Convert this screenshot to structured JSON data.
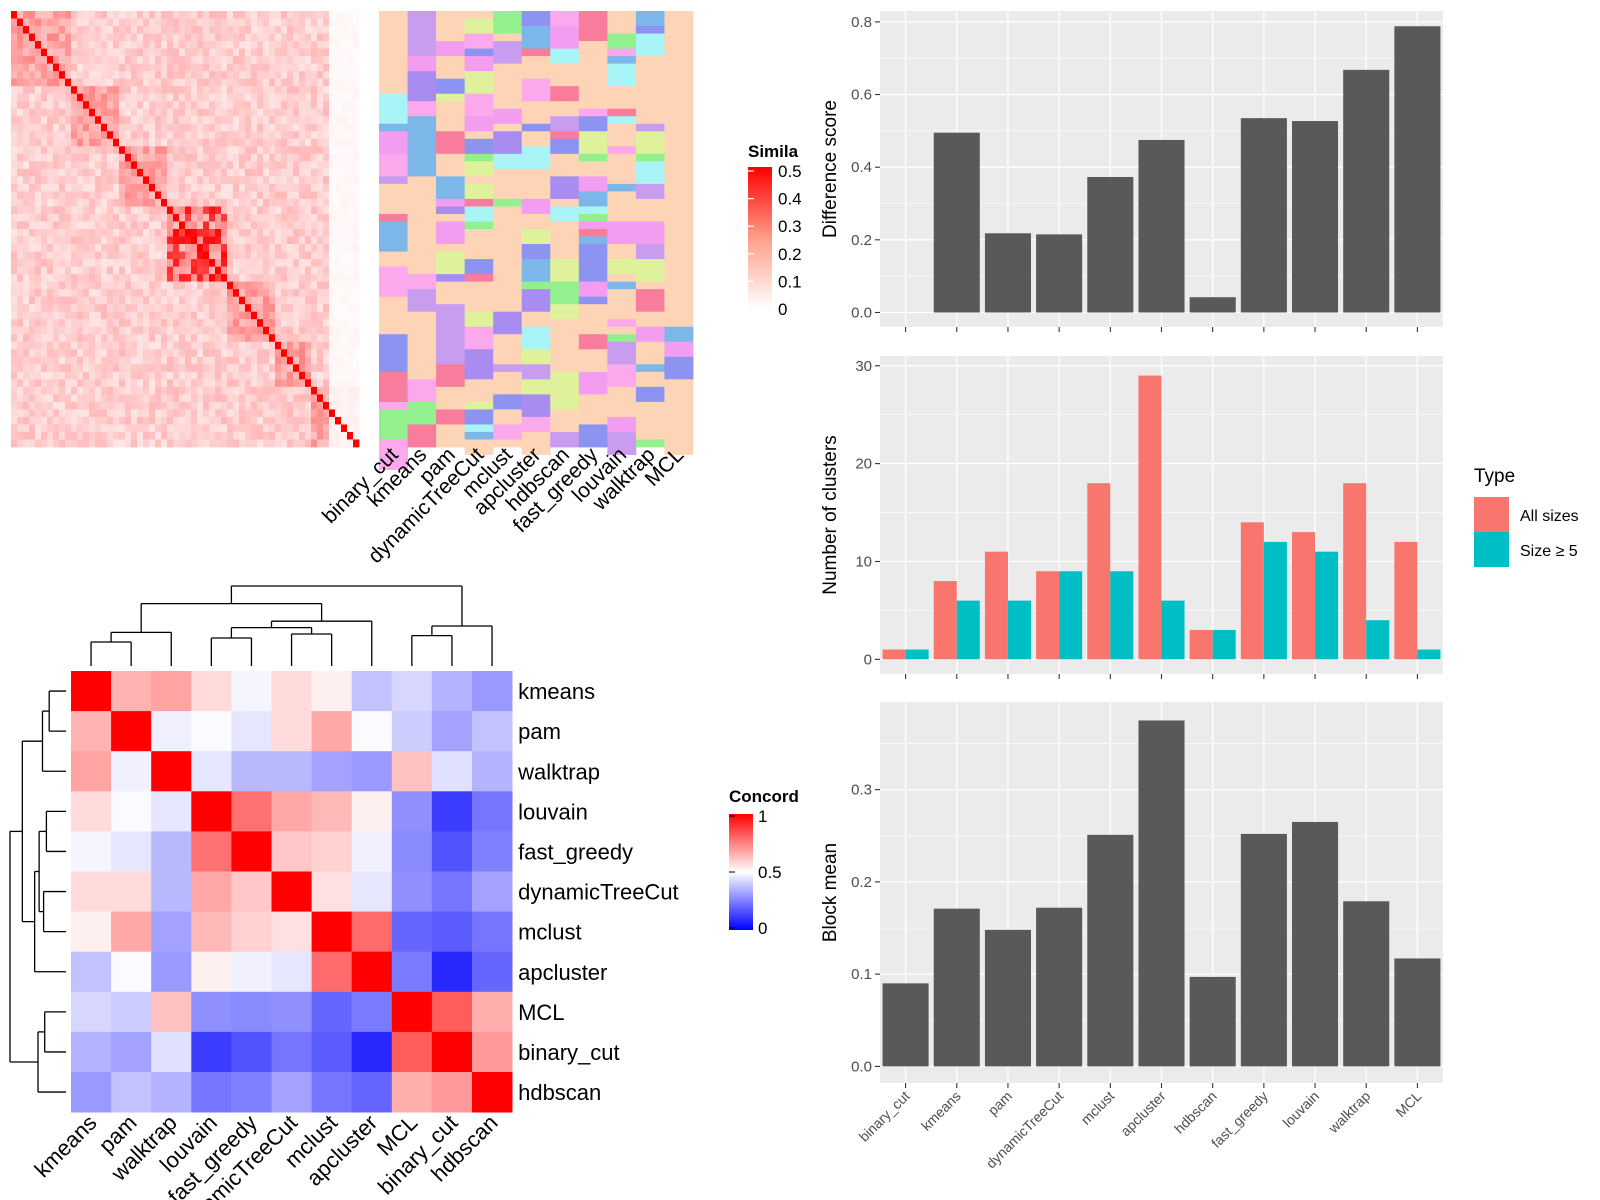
{
  "chart_data": [
    {
      "type": "heatmap",
      "id": "similarity",
      "legend_title": "Simila",
      "legend_ticks": [
        "0.5",
        "0.4",
        "0.3",
        "0.2",
        "0.1",
        "0"
      ],
      "range": [
        0,
        0.5
      ],
      "n_cells": 58,
      "column_annotations": [
        "binary_cut",
        "kmeans",
        "pam",
        "dynamicTreeCut",
        "mclust",
        "apcluster",
        "hdbscan",
        "fast_greedy",
        "louvain",
        "walktrap",
        "MCL"
      ]
    },
    {
      "type": "heatmap",
      "id": "concordance",
      "legend_title": "Concord",
      "legend_ticks": [
        "1",
        "0.5",
        "0"
      ],
      "range": [
        0,
        1
      ],
      "labels": [
        "kmeans",
        "pam",
        "walktrap",
        "louvain",
        "fast_greedy",
        "dynamicTreeCut",
        "mclust",
        "apcluster",
        "MCL",
        "binary_cut",
        "hdbscan"
      ],
      "values": [
        [
          1.0,
          0.65,
          0.68,
          0.57,
          0.48,
          0.57,
          0.53,
          0.38,
          0.42,
          0.35,
          0.3
        ],
        [
          0.65,
          1.0,
          0.47,
          0.49,
          0.45,
          0.57,
          0.67,
          0.49,
          0.4,
          0.32,
          0.38
        ],
        [
          0.68,
          0.47,
          1.0,
          0.45,
          0.36,
          0.36,
          0.32,
          0.3,
          0.62,
          0.44,
          0.35
        ],
        [
          0.57,
          0.49,
          0.45,
          1.0,
          0.78,
          0.67,
          0.64,
          0.53,
          0.28,
          0.12,
          0.23
        ],
        [
          0.48,
          0.45,
          0.36,
          0.78,
          1.0,
          0.61,
          0.59,
          0.47,
          0.27,
          0.16,
          0.25
        ],
        [
          0.57,
          0.57,
          0.36,
          0.67,
          0.61,
          1.0,
          0.56,
          0.45,
          0.28,
          0.23,
          0.32
        ],
        [
          0.53,
          0.67,
          0.32,
          0.64,
          0.59,
          0.56,
          1.0,
          0.79,
          0.2,
          0.18,
          0.23
        ],
        [
          0.38,
          0.49,
          0.3,
          0.53,
          0.47,
          0.45,
          0.79,
          1.0,
          0.24,
          0.08,
          0.2
        ],
        [
          0.42,
          0.4,
          0.62,
          0.28,
          0.27,
          0.28,
          0.2,
          0.24,
          1.0,
          0.82,
          0.66
        ],
        [
          0.35,
          0.32,
          0.44,
          0.12,
          0.16,
          0.23,
          0.18,
          0.08,
          0.82,
          1.0,
          0.7
        ],
        [
          0.3,
          0.38,
          0.35,
          0.23,
          0.25,
          0.32,
          0.23,
          0.2,
          0.66,
          0.7,
          1.0
        ]
      ]
    },
    {
      "type": "bar",
      "id": "difference",
      "ylabel": "Difference score",
      "categories": [
        "binary_cut",
        "kmeans",
        "pam",
        "dynamicTreeCut",
        "mclust",
        "apcluster",
        "hdbscan",
        "fast_greedy",
        "louvain",
        "walktrap",
        "MCL"
      ],
      "values": [
        0,
        0.495,
        0.218,
        0.215,
        0.373,
        0.475,
        0.042,
        0.535,
        0.527,
        0.668,
        0.788
      ],
      "ylim": [
        -0.04,
        0.83
      ],
      "yticks": [
        0.0,
        0.2,
        0.4,
        0.6,
        0.8
      ],
      "ytick_labels": [
        "0.0",
        "0.2",
        "0.4",
        "0.6",
        "0.8"
      ],
      "grid": true
    },
    {
      "type": "bar",
      "id": "clusters",
      "ylabel": "Number of clusters",
      "legend_title": "Type",
      "legend_position": "right",
      "categories": [
        "binary_cut",
        "kmeans",
        "pam",
        "dynamicTreeCut",
        "mclust",
        "apcluster",
        "hdbscan",
        "fast_greedy",
        "louvain",
        "walktrap",
        "MCL"
      ],
      "series": [
        {
          "name": "All sizes",
          "color": "#F8766D",
          "values": [
            1,
            8,
            11,
            9,
            18,
            29,
            3,
            14,
            13,
            18,
            12
          ]
        },
        {
          "name": "Size ≥ 5",
          "color": "#00BFC4",
          "values": [
            1,
            6,
            6,
            9,
            9,
            6,
            3,
            12,
            11,
            4,
            1
          ]
        }
      ],
      "ylim": [
        -1.5,
        31
      ],
      "yticks": [
        0,
        10,
        20,
        30
      ],
      "ytick_labels": [
        "0",
        "10",
        "20",
        "30"
      ],
      "grid": true
    },
    {
      "type": "bar",
      "id": "blockmean",
      "ylabel": "Block mean",
      "categories": [
        "binary_cut",
        "kmeans",
        "pam",
        "dynamicTreeCut",
        "mclust",
        "apcluster",
        "hdbscan",
        "fast_greedy",
        "louvain",
        "walktrap",
        "MCL"
      ],
      "values": [
        0.09,
        0.171,
        0.148,
        0.172,
        0.251,
        0.375,
        0.097,
        0.252,
        0.265,
        0.179,
        0.117
      ],
      "ylim": [
        -0.018,
        0.395
      ],
      "yticks": [
        0.0,
        0.1,
        0.2,
        0.3
      ],
      "ytick_labels": [
        "0.0",
        "0.1",
        "0.2",
        "0.3"
      ],
      "grid": true
    }
  ],
  "colors": {
    "panel_bg": "#EBEBEB",
    "grid": "#FFFFFF",
    "bar": "#595959",
    "heat_high": "#FF0000",
    "heat_mid": "#FFFFFF",
    "heat_low": "#0000FF",
    "annotation_default": "#FDD4B6"
  }
}
